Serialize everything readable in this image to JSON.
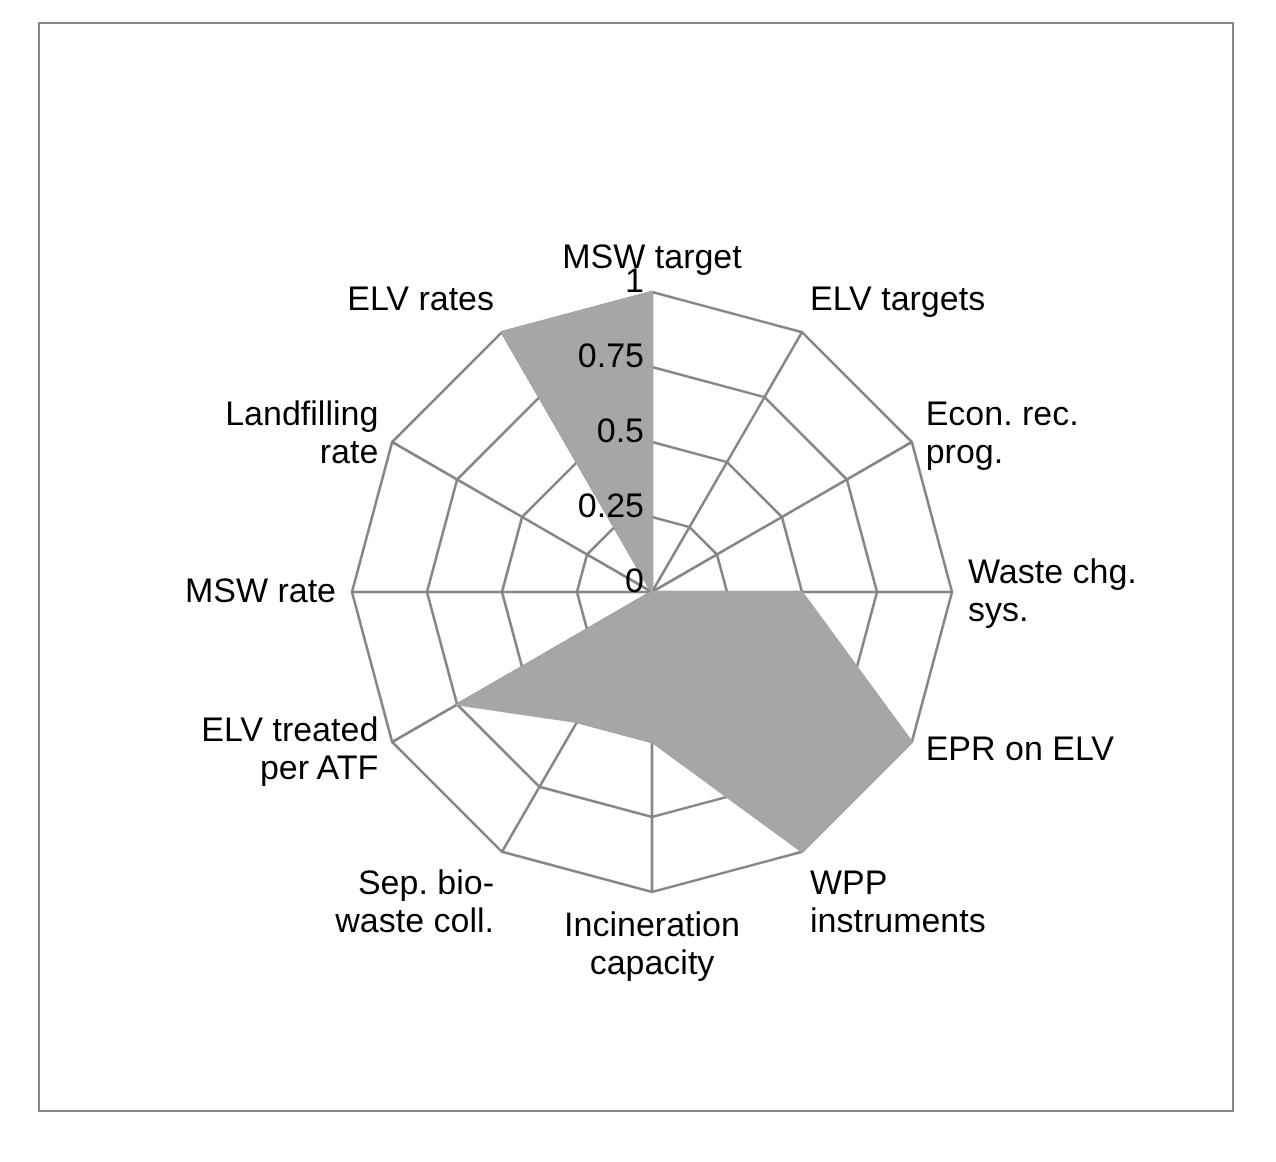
{
  "chart_data": {
    "type": "radar",
    "categories": [
      "MSW target",
      "ELV targets",
      "Econ. rec. prog.",
      "Waste chg. sys.",
      "EPR on ELV",
      "WPP instruments",
      "Incineration capacity",
      "Sep. bio-waste coll.",
      "ELV treated per ATF",
      "MSW rate",
      "Landfilling rate",
      "ELV rates"
    ],
    "series": [
      {
        "color": "#a6a6a6",
        "values": [
          1,
          0,
          0,
          0.5,
          1,
          1,
          0.5,
          0.5,
          0.75,
          0,
          0,
          1
        ]
      }
    ],
    "ylim": [
      0,
      1
    ],
    "yticks": [
      0,
      0.25,
      0.5,
      0.75,
      1
    ],
    "grid": true
  }
}
